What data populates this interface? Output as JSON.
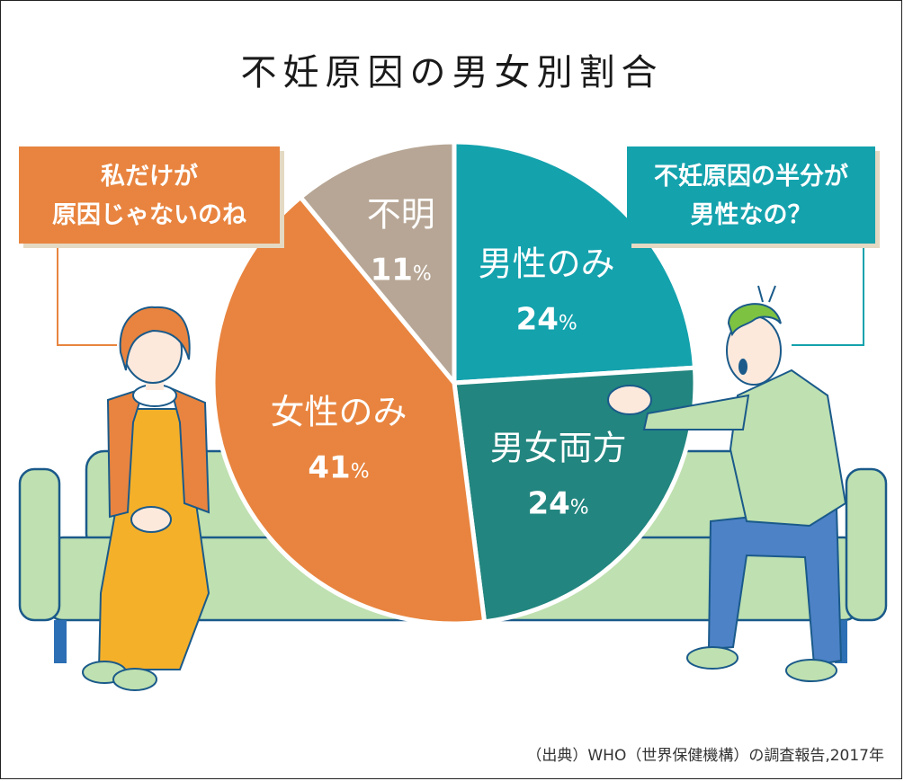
{
  "title": "不妊原因の男女別割合",
  "bubble_left_lines": [
    "私だけが",
    "原因じゃないのね"
  ],
  "bubble_right_lines": [
    "不妊原因の半分が",
    "男性なの？"
  ],
  "source": "（出典）WHO（世界保健機構）の調査報告,2017年",
  "colors": {
    "male_only": "#14a2ad",
    "both": "#22857f",
    "female_only": "#e8843f",
    "unknown": "#b7a695",
    "sofa": "#bfe0b0",
    "sofa_dark": "#2c6fb4"
  },
  "chart_data": {
    "type": "pie",
    "title": "不妊原因の男女別割合",
    "unit": "%",
    "slices": [
      {
        "label": "男性のみ",
        "value": 24,
        "color": "#14a2ad"
      },
      {
        "label": "男女両方",
        "value": 24,
        "color": "#22857f"
      },
      {
        "label": "女性のみ",
        "value": 41,
        "color": "#e8843f"
      },
      {
        "label": "不明",
        "value": 11,
        "color": "#b7a695"
      }
    ]
  }
}
